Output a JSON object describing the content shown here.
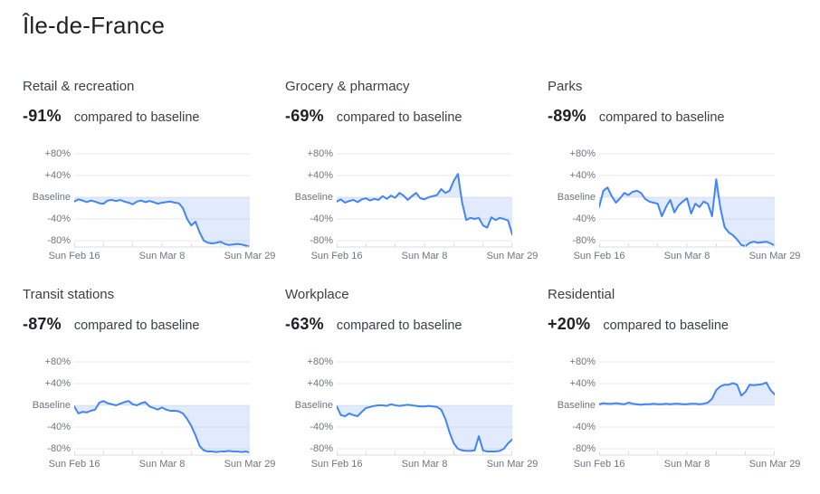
{
  "title": "Île-de-France",
  "colors": {
    "line": "#4285f4",
    "fill": "#4285f4",
    "fill_opacity": 0.16,
    "gridline": "#e9e9e9",
    "axis_line": "#dadce0",
    "tick": "#dadce0",
    "axis_label_text": "#70757a",
    "heading_text": "#202124",
    "body_text": "#3c4043"
  },
  "axis": {
    "y_tick_labels": [
      "+80%",
      "+40%",
      "Baseline",
      "-40%",
      "-80%"
    ],
    "y_tick_values": [
      80,
      40,
      0,
      -40,
      -80
    ],
    "x_tick_labels": [
      "Sun Feb 16",
      "Sun Mar 8",
      "Sun Mar 29"
    ],
    "x_start": "Sun Feb 16",
    "x_end": "Sun Mar 29",
    "days": 43,
    "weekly_tick_count": 7,
    "grid": "horizontal-only",
    "legend": "none"
  },
  "chart_data": [
    {
      "type": "area",
      "category": "Retail & recreation",
      "delta_label": "-91%",
      "caption": "compared to baseline",
      "ylim": [
        -92,
        100
      ],
      "values": [
        -8,
        -4,
        -6,
        -9,
        -6,
        -8,
        -11,
        -12,
        -6,
        -5,
        -7,
        -5,
        -8,
        -10,
        -13,
        -8,
        -6,
        -9,
        -7,
        -9,
        -12,
        -10,
        -9,
        -8,
        -10,
        -11,
        -20,
        -40,
        -52,
        -45,
        -65,
        -80,
        -84,
        -85,
        -84,
        -82,
        -86,
        -88,
        -87,
        -86,
        -87,
        -89,
        -91
      ]
    },
    {
      "type": "area",
      "category": "Grocery & pharmacy",
      "delta_label": "-69%",
      "caption": "compared to baseline",
      "ylim": [
        -92,
        100
      ],
      "values": [
        -8,
        -4,
        -10,
        -7,
        -5,
        -9,
        -4,
        -2,
        -6,
        -3,
        -5,
        2,
        -3,
        3,
        -1,
        8,
        3,
        -5,
        2,
        8,
        -2,
        -4,
        0,
        2,
        4,
        15,
        8,
        12,
        30,
        43,
        -10,
        -42,
        -38,
        -40,
        -38,
        -52,
        -56,
        -37,
        -42,
        -38,
        -40,
        -43,
        -69
      ]
    },
    {
      "type": "area",
      "category": "Parks",
      "delta_label": "-89%",
      "caption": "compared to baseline",
      "ylim": [
        -92,
        100
      ],
      "values": [
        -18,
        12,
        18,
        2,
        -10,
        -2,
        8,
        4,
        10,
        12,
        8,
        -3,
        -8,
        -10,
        -12,
        -35,
        -18,
        -5,
        -28,
        -15,
        -8,
        -2,
        -30,
        -12,
        -18,
        -8,
        -12,
        -35,
        33,
        -20,
        -55,
        -65,
        -70,
        -78,
        -88,
        -90,
        -84,
        -82,
        -84,
        -83,
        -82,
        -85,
        -89
      ]
    },
    {
      "type": "area",
      "category": "Transit stations",
      "delta_label": "-87%",
      "caption": "compared to baseline",
      "ylim": [
        -92,
        100
      ],
      "values": [
        -2,
        -15,
        -12,
        -13,
        -10,
        -8,
        5,
        8,
        4,
        2,
        0,
        3,
        6,
        8,
        2,
        0,
        4,
        6,
        -2,
        -5,
        -8,
        -4,
        -8,
        -10,
        -10,
        -11,
        -15,
        -25,
        -38,
        -55,
        -75,
        -83,
        -85,
        -85,
        -86,
        -85,
        -85,
        -84,
        -85,
        -85,
        -86,
        -85,
        -87
      ]
    },
    {
      "type": "area",
      "category": "Workplace",
      "delta_label": "-63%",
      "caption": "compared to baseline",
      "ylim": [
        -92,
        100
      ],
      "values": [
        -2,
        -18,
        -20,
        -15,
        -18,
        -20,
        -12,
        -5,
        -3,
        -1,
        0,
        0,
        -1,
        2,
        0,
        -1,
        0,
        1,
        0,
        -1,
        -2,
        -2,
        -1,
        -2,
        -3,
        -8,
        -25,
        -50,
        -70,
        -80,
        -83,
        -84,
        -84,
        -83,
        -57,
        -83,
        -85,
        -85,
        -85,
        -84,
        -80,
        -70,
        -63
      ]
    },
    {
      "type": "area",
      "category": "Residential",
      "delta_label": "+20%",
      "caption": "compared to baseline",
      "ylim": [
        -92,
        100
      ],
      "values": [
        2,
        4,
        3,
        3,
        4,
        3,
        2,
        5,
        3,
        2,
        1,
        2,
        2,
        3,
        2,
        2,
        3,
        2,
        3,
        3,
        2,
        2,
        3,
        3,
        2,
        3,
        5,
        12,
        28,
        35,
        38,
        38,
        41,
        38,
        18,
        25,
        38,
        37,
        38,
        39,
        42,
        28,
        20
      ]
    }
  ]
}
